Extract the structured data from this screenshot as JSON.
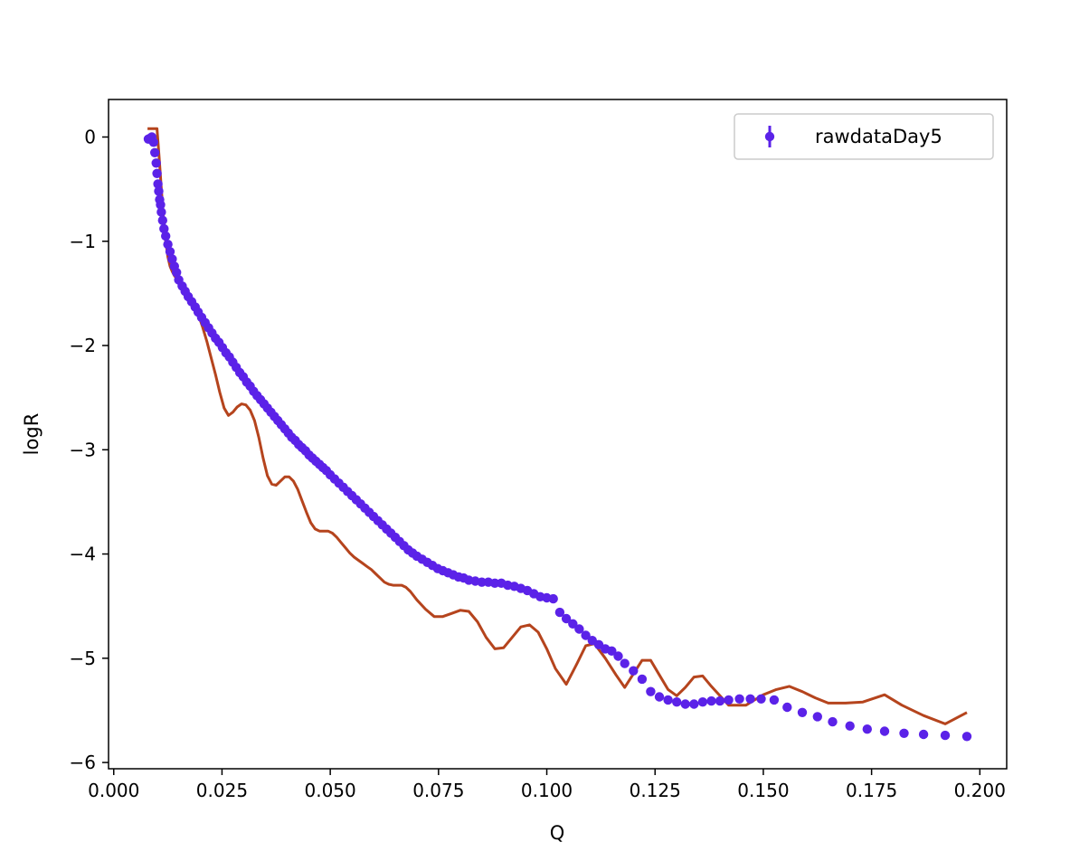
{
  "chart_data": {
    "type": "scatter",
    "title": "",
    "xlabel": "Q",
    "ylabel": "logR",
    "xlim": [
      -0.0012,
      0.2062
    ],
    "ylim": [
      -6.06,
      0.36
    ],
    "xticks": [
      0.0,
      0.025,
      0.05,
      0.075,
      0.1,
      0.125,
      0.15,
      0.175,
      0.2
    ],
    "xtick_labels": [
      "0.000",
      "0.025",
      "0.050",
      "0.075",
      "0.100",
      "0.125",
      "0.150",
      "0.175",
      "0.200"
    ],
    "yticks": [
      0,
      -1,
      -2,
      -3,
      -4,
      -5,
      -6
    ],
    "ytick_labels": [
      "0",
      "−1",
      "−2",
      "−3",
      "−4",
      "−5",
      "−6"
    ],
    "grid": false,
    "legend": {
      "location": "upper right",
      "entries": [
        "rawdataDay5"
      ]
    },
    "series": [
      {
        "name": "rawdataDay5",
        "kind": "errorbar-scatter",
        "color": "#5b22e8",
        "x": [
          0.008,
          0.0085,
          0.0088,
          0.0092,
          0.0095,
          0.0098,
          0.01,
          0.0102,
          0.0104,
          0.0106,
          0.0108,
          0.011,
          0.0113,
          0.0116,
          0.012,
          0.0125,
          0.013,
          0.0135,
          0.014,
          0.0145,
          0.015,
          0.0158,
          0.0165,
          0.0172,
          0.018,
          0.0188,
          0.0195,
          0.0203,
          0.0211,
          0.0219,
          0.0227,
          0.0235,
          0.0243,
          0.0251,
          0.0259,
          0.0267,
          0.0275,
          0.0283,
          0.0291,
          0.0299,
          0.0307,
          0.0315,
          0.0323,
          0.0331,
          0.0339,
          0.0347,
          0.0355,
          0.0363,
          0.0371,
          0.0379,
          0.0387,
          0.0395,
          0.0403,
          0.0411,
          0.0419,
          0.0427,
          0.0435,
          0.0443,
          0.0451,
          0.0459,
          0.0467,
          0.0475,
          0.0483,
          0.0491,
          0.05,
          0.051,
          0.052,
          0.053,
          0.054,
          0.055,
          0.056,
          0.057,
          0.058,
          0.059,
          0.06,
          0.061,
          0.062,
          0.063,
          0.064,
          0.065,
          0.066,
          0.067,
          0.068,
          0.069,
          0.07,
          0.0712,
          0.0724,
          0.0736,
          0.0748,
          0.076,
          0.0772,
          0.0784,
          0.0796,
          0.0808,
          0.082,
          0.0835,
          0.085,
          0.0865,
          0.088,
          0.0895,
          0.091,
          0.0925,
          0.094,
          0.0955,
          0.097,
          0.0985,
          0.1,
          0.1015,
          0.103,
          0.1045,
          0.106,
          0.1075,
          0.109,
          0.1105,
          0.112,
          0.1135,
          0.115,
          0.1165,
          0.118,
          0.12,
          0.122,
          0.124,
          0.126,
          0.128,
          0.13,
          0.132,
          0.134,
          0.136,
          0.138,
          0.14,
          0.142,
          0.1445,
          0.147,
          0.1495,
          0.1525,
          0.1555,
          0.159,
          0.1625,
          0.166,
          0.17,
          0.174,
          0.178,
          0.1825,
          0.187,
          0.192,
          0.197
        ],
        "y": [
          -0.02,
          -0.01,
          0.0,
          -0.05,
          -0.15,
          -0.25,
          -0.35,
          -0.45,
          -0.52,
          -0.6,
          -0.65,
          -0.72,
          -0.8,
          -0.88,
          -0.95,
          -1.03,
          -1.1,
          -1.17,
          -1.24,
          -1.3,
          -1.37,
          -1.43,
          -1.48,
          -1.53,
          -1.58,
          -1.63,
          -1.68,
          -1.73,
          -1.78,
          -1.83,
          -1.88,
          -1.93,
          -1.97,
          -2.02,
          -2.07,
          -2.11,
          -2.16,
          -2.21,
          -2.26,
          -2.3,
          -2.35,
          -2.39,
          -2.44,
          -2.48,
          -2.52,
          -2.56,
          -2.6,
          -2.64,
          -2.68,
          -2.72,
          -2.76,
          -2.8,
          -2.84,
          -2.88,
          -2.91,
          -2.95,
          -2.98,
          -3.01,
          -3.05,
          -3.08,
          -3.11,
          -3.14,
          -3.17,
          -3.2,
          -3.24,
          -3.28,
          -3.32,
          -3.36,
          -3.4,
          -3.44,
          -3.48,
          -3.52,
          -3.56,
          -3.6,
          -3.64,
          -3.68,
          -3.72,
          -3.76,
          -3.8,
          -3.84,
          -3.88,
          -3.92,
          -3.96,
          -3.99,
          -4.02,
          -4.05,
          -4.08,
          -4.11,
          -4.14,
          -4.16,
          -4.18,
          -4.2,
          -4.22,
          -4.23,
          -4.25,
          -4.26,
          -4.27,
          -4.27,
          -4.28,
          -4.28,
          -4.3,
          -4.31,
          -4.33,
          -4.35,
          -4.38,
          -4.41,
          -4.42,
          -4.43,
          -4.56,
          -4.62,
          -4.67,
          -4.72,
          -4.78,
          -4.83,
          -4.87,
          -4.91,
          -4.93,
          -4.98,
          -5.05,
          -5.12,
          -5.2,
          -5.32,
          -5.37,
          -5.4,
          -5.42,
          -5.44,
          -5.44,
          -5.42,
          -5.41,
          -5.41,
          -5.4,
          -5.39,
          -5.39,
          -5.39,
          -5.4,
          -5.47,
          -5.52,
          -5.56,
          -5.61,
          -5.65,
          -5.68,
          -5.7,
          -5.72,
          -5.73,
          -5.74,
          -5.75
        ]
      },
      {
        "name": "",
        "kind": "line",
        "color": "#b5441d",
        "x": [
          0.0078,
          0.009,
          0.01,
          0.0105,
          0.011,
          0.0115,
          0.012,
          0.0125,
          0.013,
          0.0135,
          0.014,
          0.0148,
          0.0156,
          0.0165,
          0.0175,
          0.0185,
          0.0195,
          0.0205,
          0.0215,
          0.0225,
          0.0235,
          0.0245,
          0.0255,
          0.0265,
          0.0275,
          0.0285,
          0.0295,
          0.0305,
          0.0315,
          0.0325,
          0.0335,
          0.0345,
          0.0355,
          0.0365,
          0.0375,
          0.0385,
          0.0395,
          0.0405,
          0.0415,
          0.0425,
          0.0435,
          0.0445,
          0.0455,
          0.0465,
          0.0475,
          0.0485,
          0.0495,
          0.0505,
          0.0515,
          0.0525,
          0.0535,
          0.0545,
          0.0555,
          0.0565,
          0.0575,
          0.0585,
          0.0595,
          0.0605,
          0.0615,
          0.0625,
          0.0635,
          0.0645,
          0.0655,
          0.0665,
          0.0675,
          0.0685,
          0.07,
          0.072,
          0.074,
          0.076,
          0.078,
          0.08,
          0.082,
          0.084,
          0.086,
          0.088,
          0.09,
          0.092,
          0.094,
          0.096,
          0.098,
          0.1,
          0.102,
          0.1045,
          0.107,
          0.109,
          0.111,
          0.1135,
          0.116,
          0.118,
          0.12,
          0.122,
          0.124,
          0.126,
          0.128,
          0.13,
          0.132,
          0.134,
          0.136,
          0.138,
          0.14,
          0.142,
          0.144,
          0.146,
          0.148,
          0.15,
          0.153,
          0.156,
          0.159,
          0.162,
          0.165,
          0.169,
          0.173,
          0.178,
          0.182,
          0.187,
          0.192,
          0.197
        ],
        "y": [
          0.08,
          0.08,
          0.08,
          -0.2,
          -0.5,
          -0.78,
          -1.0,
          -1.15,
          -1.24,
          -1.29,
          -1.33,
          -1.37,
          -1.41,
          -1.46,
          -1.52,
          -1.6,
          -1.7,
          -1.82,
          -1.96,
          -2.12,
          -2.28,
          -2.45,
          -2.6,
          -2.67,
          -2.64,
          -2.59,
          -2.56,
          -2.57,
          -2.62,
          -2.72,
          -2.88,
          -3.08,
          -3.25,
          -3.33,
          -3.34,
          -3.3,
          -3.26,
          -3.26,
          -3.3,
          -3.38,
          -3.49,
          -3.6,
          -3.7,
          -3.76,
          -3.78,
          -3.78,
          -3.78,
          -3.8,
          -3.84,
          -3.89,
          -3.94,
          -3.99,
          -4.03,
          -4.06,
          -4.09,
          -4.12,
          -4.15,
          -4.19,
          -4.23,
          -4.27,
          -4.29,
          -4.3,
          -4.3,
          -4.3,
          -4.32,
          -4.36,
          -4.44,
          -4.53,
          -4.6,
          -4.6,
          -4.57,
          -4.54,
          -4.55,
          -4.65,
          -4.8,
          -4.91,
          -4.9,
          -4.8,
          -4.7,
          -4.68,
          -4.75,
          -4.91,
          -5.1,
          -5.25,
          -5.05,
          -4.88,
          -4.86,
          -5.0,
          -5.16,
          -5.28,
          -5.15,
          -5.02,
          -5.02,
          -5.16,
          -5.3,
          -5.36,
          -5.28,
          -5.18,
          -5.17,
          -5.27,
          -5.36,
          -5.45,
          -5.45,
          -5.45,
          -5.4,
          -5.35,
          -5.3,
          -5.27,
          -5.32,
          -5.38,
          -5.43,
          -5.43,
          -5.42,
          -5.35,
          -5.45,
          -5.55,
          -5.63,
          -5.52
        ]
      }
    ]
  }
}
